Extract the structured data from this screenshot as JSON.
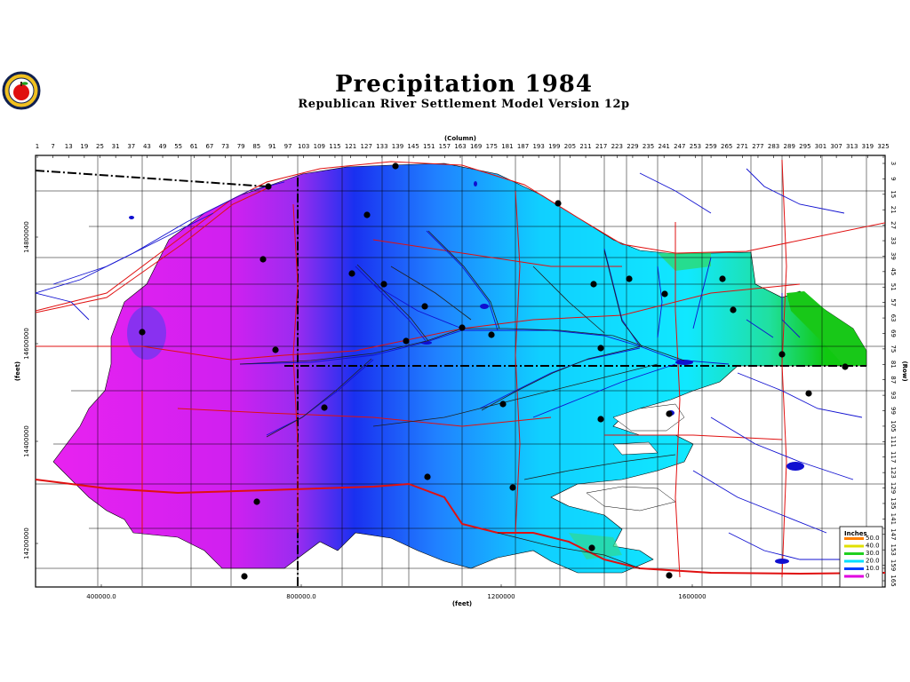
{
  "title": "Precipitation  1984",
  "subtitle": "Republican  River  Settlement  Model  Version  12p",
  "logo_icon": "apple-seal-logo-icon",
  "axes": {
    "column_label": "(Column)",
    "row_label": "(Row)",
    "x_label": "(feet)",
    "y_label": "(feet)",
    "column_ticks": [
      "1",
      "7",
      "13",
      "19",
      "25",
      "31",
      "37",
      "43",
      "49",
      "55",
      "61",
      "67",
      "73",
      "79",
      "85",
      "91",
      "97",
      "103",
      "109",
      "115",
      "121",
      "127",
      "133",
      "139",
      "145",
      "151",
      "157",
      "163",
      "169",
      "175",
      "181",
      "187",
      "193",
      "199",
      "205",
      "211",
      "217",
      "223",
      "229",
      "235",
      "241",
      "247",
      "253",
      "259",
      "265",
      "271",
      "277",
      "283",
      "289",
      "295",
      "301",
      "307",
      "313",
      "319",
      "325"
    ],
    "row_ticks": [
      "3",
      "9",
      "15",
      "21",
      "27",
      "33",
      "39",
      "45",
      "51",
      "57",
      "63",
      "69",
      "75",
      "81",
      "87",
      "93",
      "99",
      "105",
      "111",
      "117",
      "123",
      "129",
      "135",
      "141",
      "147",
      "153",
      "159",
      "165"
    ],
    "x_ticks": [
      "400000.0",
      "800000.0",
      "1200000",
      "1600000"
    ],
    "y_ticks": [
      "14800000",
      "14600000",
      "14400000",
      "14200000"
    ]
  },
  "legend": {
    "title": "Inches",
    "entries": [
      {
        "label": "50.0",
        "color": "#ff8000"
      },
      {
        "label": "40.0",
        "color": "#e0e000"
      },
      {
        "label": "30.0",
        "color": "#20d020"
      },
      {
        "label": "20.0",
        "color": "#00e0ff"
      },
      {
        "label": "10.0",
        "color": "#0040ff"
      },
      {
        "label": "0",
        "color": "#e000e0"
      }
    ]
  },
  "colors": {
    "magenta": "#e31cf0",
    "violet": "#9030f0",
    "blue": "#1a3cf5",
    "cyan": "#10d8ff",
    "green": "#18c818",
    "roads": "#e01010",
    "rivers": "#1010d0"
  }
}
